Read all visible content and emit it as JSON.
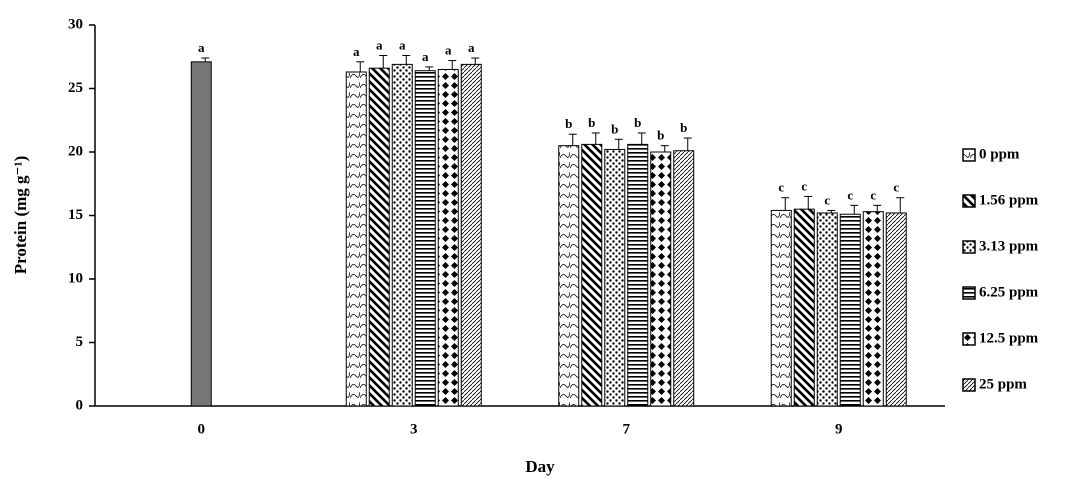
{
  "chart_data": {
    "type": "bar",
    "x_label": "Day",
    "y_label": "Protein (mg g⁻¹)",
    "categories": [
      "0",
      "3",
      "7",
      "9"
    ],
    "ylim": [
      0,
      30
    ],
    "yticks": [
      0,
      5,
      10,
      15,
      20,
      25,
      30
    ],
    "day0": {
      "value": 27.1,
      "error": 0.3,
      "letter": "a",
      "color": "#777777"
    },
    "series": [
      {
        "name": "0 ppm",
        "pattern": "wave",
        "color": "#000000",
        "values": [
          null,
          26.3,
          20.5,
          15.4
        ],
        "errors": [
          null,
          0.8,
          0.9,
          1.0
        ],
        "letters": [
          null,
          "a",
          "b",
          "c"
        ]
      },
      {
        "name": "1.56 ppm",
        "pattern": "diag",
        "color": "#000000",
        "values": [
          null,
          26.6,
          20.6,
          15.5
        ],
        "errors": [
          null,
          1.0,
          0.9,
          1.0
        ],
        "letters": [
          null,
          "a",
          "b",
          "c"
        ]
      },
      {
        "name": "3.13 ppm",
        "pattern": "dots",
        "color": "#000000",
        "values": [
          null,
          26.9,
          20.2,
          15.2
        ],
        "errors": [
          null,
          0.7,
          0.8,
          0.2
        ],
        "letters": [
          null,
          "a",
          "b",
          "c"
        ]
      },
      {
        "name": "6.25 ppm",
        "pattern": "horiz",
        "color": "#000000",
        "values": [
          null,
          26.4,
          20.6,
          15.1
        ],
        "errors": [
          null,
          0.3,
          0.9,
          0.7
        ],
        "letters": [
          null,
          "a",
          "b",
          "c"
        ]
      },
      {
        "name": "12.5 ppm",
        "pattern": "diamond",
        "color": "#000000",
        "values": [
          null,
          26.5,
          20.0,
          15.3
        ],
        "errors": [
          null,
          0.7,
          0.5,
          0.5
        ],
        "letters": [
          null,
          "a",
          "b",
          "c"
        ]
      },
      {
        "name": "25 ppm",
        "pattern": "fine",
        "color": "#000000",
        "values": [
          null,
          26.9,
          20.1,
          15.2
        ],
        "errors": [
          null,
          0.5,
          1.0,
          1.2
        ],
        "letters": [
          null,
          "a",
          "b",
          "c"
        ]
      }
    ]
  }
}
